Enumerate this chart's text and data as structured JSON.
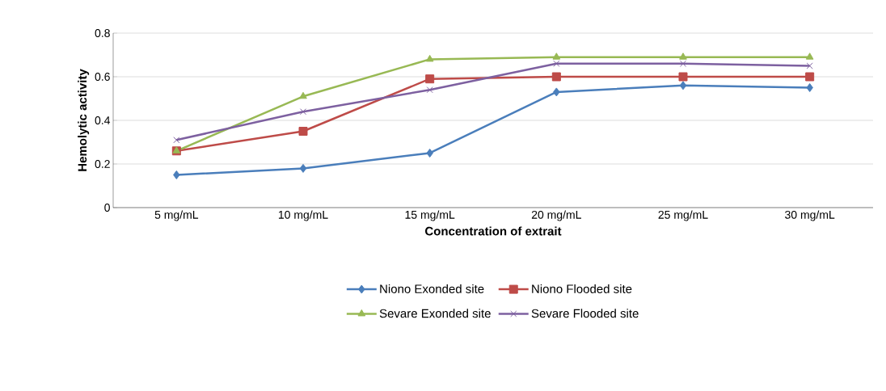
{
  "chart_data": {
    "type": "line",
    "xlabel": "Concentration of extrait",
    "ylabel": "Hemolytic activity",
    "categories": [
      "5 mg/mL",
      "10 mg/mL",
      "15 mg/mL",
      "20 mg/mL",
      "25 mg/mL",
      "30 mg/mL"
    ],
    "series": [
      {
        "name": "Niono Exonded site",
        "color": "#4a7ebb",
        "marker": "diamond",
        "values": [
          0.15,
          0.18,
          0.25,
          0.53,
          0.56,
          0.55
        ]
      },
      {
        "name": "Niono Flooded site",
        "color": "#be4b48",
        "marker": "square",
        "values": [
          0.26,
          0.35,
          0.59,
          0.6,
          0.6,
          0.6
        ]
      },
      {
        "name": "Sevare Exonded site",
        "color": "#98b954",
        "marker": "triangle",
        "values": [
          0.26,
          0.51,
          0.68,
          0.69,
          0.69,
          0.69
        ]
      },
      {
        "name": "Sevare Flooded site",
        "color": "#7d60a0",
        "marker": "cross",
        "values": [
          0.31,
          0.44,
          0.54,
          0.66,
          0.66,
          0.65
        ]
      }
    ],
    "ylim": [
      0,
      0.8
    ],
    "yticks": [
      0,
      0.2,
      0.4,
      0.6,
      0.8
    ],
    "grid": "y",
    "legend": "bottom"
  }
}
